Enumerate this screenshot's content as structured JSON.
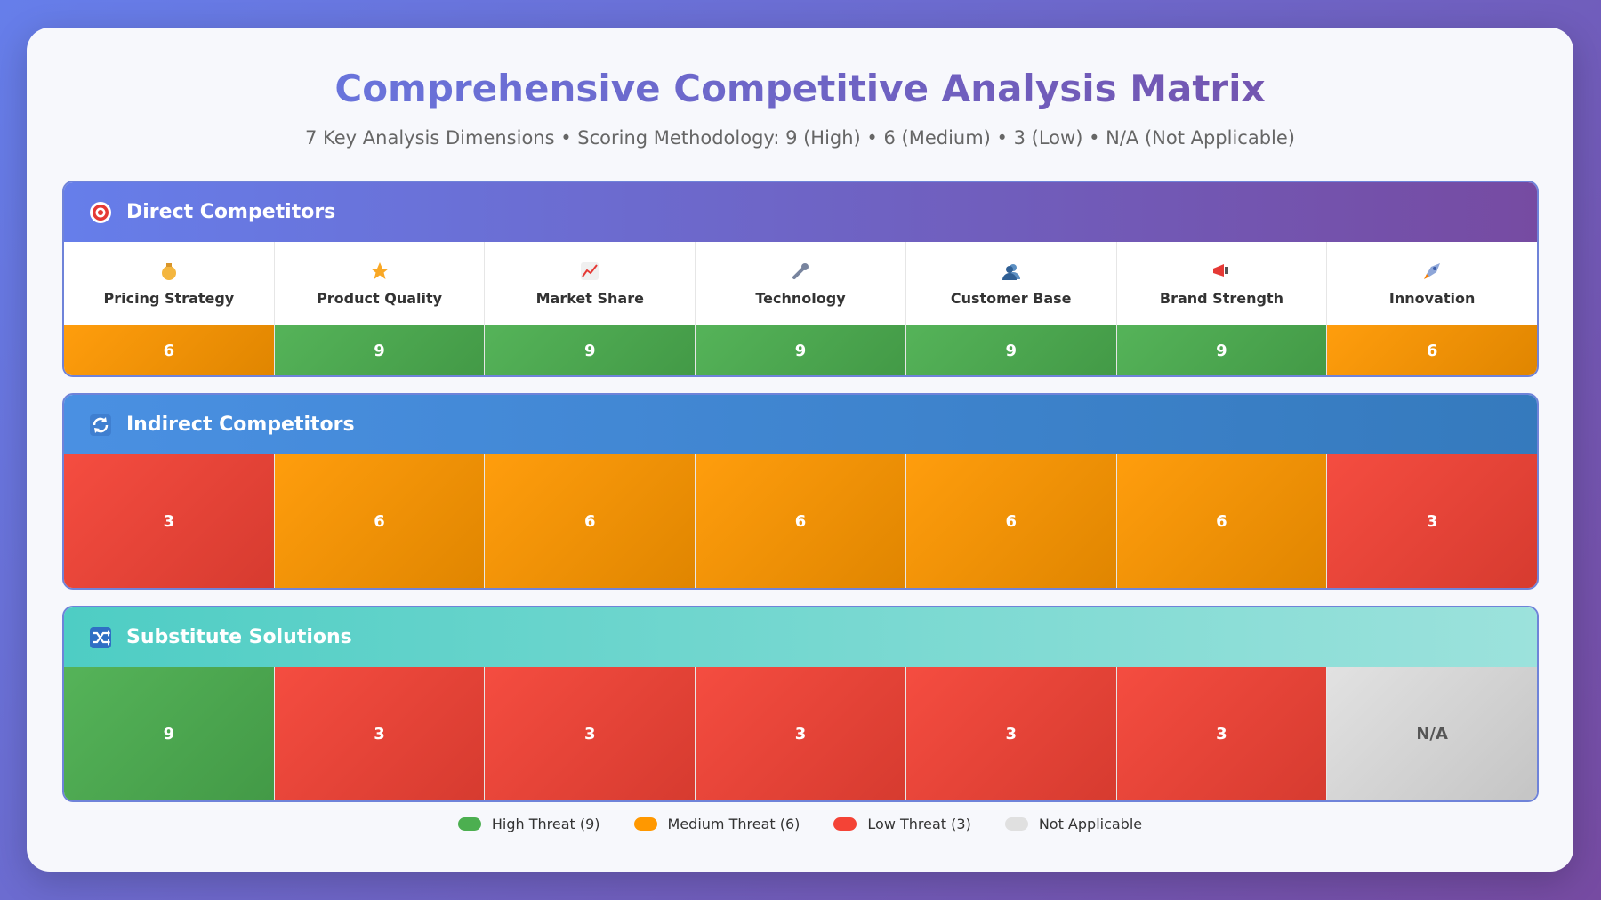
{
  "header": {
    "title": "Comprehensive Competitive Analysis Matrix",
    "subtitle": "7 Key Analysis Dimensions • Scoring Methodology: 9 (High) • 6 (Medium) • 3 (Low) • N/A (Not Applicable)"
  },
  "columns": [
    "Pricing Strategy",
    "Product Quality",
    "Market Share",
    "Technology",
    "Customer Base",
    "Brand Strength",
    "Innovation"
  ],
  "sections": [
    {
      "title": "Direct Competitors",
      "cells": [
        6,
        9,
        9,
        9,
        9,
        9,
        6
      ]
    },
    {
      "title": "Indirect Competitors",
      "cells": [
        3,
        6,
        6,
        6,
        6,
        6,
        3
      ]
    },
    {
      "title": "Substitute Solutions",
      "cells": [
        9,
        3,
        3,
        3,
        3,
        3,
        "N/A"
      ]
    }
  ],
  "legend": [
    {
      "label": "High Threat (9)",
      "value": 9,
      "color": "#4caf50"
    },
    {
      "label": "Medium Threat (6)",
      "value": 6,
      "color": "#ff9800"
    },
    {
      "label": "Low Threat (3)",
      "value": 3,
      "color": "#f44336"
    },
    {
      "label": "Not Applicable",
      "value": "N/A",
      "color": "#e0e0e0"
    }
  ]
}
